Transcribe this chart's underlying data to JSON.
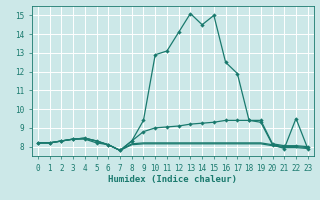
{
  "xlabel": "Humidex (Indice chaleur)",
  "background_color": "#cce8e8",
  "grid_color": "#ffffff",
  "line_color": "#1a7a6e",
  "xlim": [
    -0.5,
    23.5
  ],
  "ylim": [
    7.5,
    15.5
  ],
  "xticks": [
    0,
    1,
    2,
    3,
    4,
    5,
    6,
    7,
    8,
    9,
    10,
    11,
    12,
    13,
    14,
    15,
    16,
    17,
    18,
    19,
    20,
    21,
    22,
    23
  ],
  "yticks": [
    8,
    9,
    10,
    11,
    12,
    13,
    14,
    15
  ],
  "line1_x": [
    0,
    1,
    2,
    3,
    4,
    5,
    6,
    7,
    8,
    9,
    10,
    11,
    12,
    13,
    14,
    15,
    16,
    17,
    18,
    19,
    20,
    21,
    22,
    23
  ],
  "line1_y": [
    8.2,
    8.2,
    8.3,
    8.4,
    8.4,
    8.2,
    8.1,
    7.8,
    8.3,
    9.4,
    12.9,
    13.1,
    14.1,
    15.1,
    14.5,
    15.0,
    12.5,
    11.9,
    9.4,
    9.3,
    8.1,
    7.9,
    9.5,
    7.9
  ],
  "line2_x": [
    0,
    1,
    2,
    3,
    4,
    5,
    6,
    7,
    8,
    9,
    10,
    11,
    12,
    13,
    14,
    15,
    16,
    17,
    18,
    19,
    20,
    21,
    22,
    23
  ],
  "line2_y": [
    8.2,
    8.2,
    8.3,
    8.4,
    8.45,
    8.3,
    8.1,
    7.8,
    8.3,
    8.8,
    9.0,
    9.05,
    9.1,
    9.2,
    9.25,
    9.3,
    9.4,
    9.4,
    9.4,
    9.4,
    8.15,
    8.05,
    8.05,
    8.0
  ],
  "line3_x": [
    0,
    1,
    2,
    3,
    4,
    5,
    6,
    7,
    8,
    9,
    10,
    11,
    12,
    13,
    14,
    15,
    16,
    17,
    18,
    19,
    20,
    21,
    22,
    23
  ],
  "line3_y": [
    8.2,
    8.2,
    8.3,
    8.4,
    8.45,
    8.3,
    8.1,
    7.8,
    8.15,
    8.2,
    8.2,
    8.2,
    8.2,
    8.2,
    8.2,
    8.2,
    8.2,
    8.2,
    8.2,
    8.2,
    8.1,
    8.0,
    8.0,
    7.95
  ],
  "line4_x": [
    0,
    1,
    2,
    3,
    4,
    5,
    6,
    7,
    8,
    9,
    10,
    11,
    12,
    13,
    14,
    15,
    16,
    17,
    18,
    19,
    20,
    21,
    22,
    23
  ],
  "line4_y": [
    8.2,
    8.2,
    8.3,
    8.4,
    8.45,
    8.3,
    8.1,
    7.8,
    8.1,
    8.15,
    8.15,
    8.15,
    8.15,
    8.15,
    8.15,
    8.15,
    8.15,
    8.15,
    8.15,
    8.15,
    8.05,
    7.95,
    7.95,
    7.9
  ]
}
